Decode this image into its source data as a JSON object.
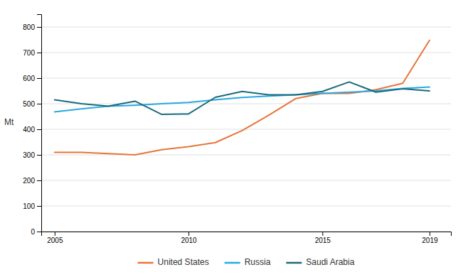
{
  "chart_data": {
    "type": "line",
    "ylabel": "Mt",
    "x": [
      2005,
      2006,
      2007,
      2008,
      2009,
      2010,
      2011,
      2012,
      2013,
      2014,
      2015,
      2016,
      2017,
      2018,
      2019
    ],
    "series": [
      {
        "name": "United States",
        "color": "#E8743B",
        "values": [
          310,
          310,
          305,
          300,
          320,
          332,
          348,
          395,
          455,
          520,
          540,
          540,
          555,
          580,
          748
        ]
      },
      {
        "name": "Russia",
        "color": "#29A8DE",
        "values": [
          468,
          480,
          490,
          494,
          500,
          505,
          515,
          524,
          530,
          535,
          540,
          545,
          550,
          560,
          565
        ]
      },
      {
        "name": "Saudi Arabia",
        "color": "#1B6B7B",
        "values": [
          515,
          500,
          490,
          510,
          458,
          460,
          525,
          548,
          535,
          535,
          548,
          585,
          545,
          558,
          550
        ]
      }
    ],
    "xlim": [
      2004.5,
      2019.8
    ],
    "xticks": [
      2005,
      2010,
      2015,
      2019
    ],
    "ylim": [
      0,
      850
    ],
    "yticks": [
      0,
      100,
      200,
      300,
      400,
      500,
      600,
      700,
      800
    ],
    "grid": true,
    "legend": "bottom"
  }
}
